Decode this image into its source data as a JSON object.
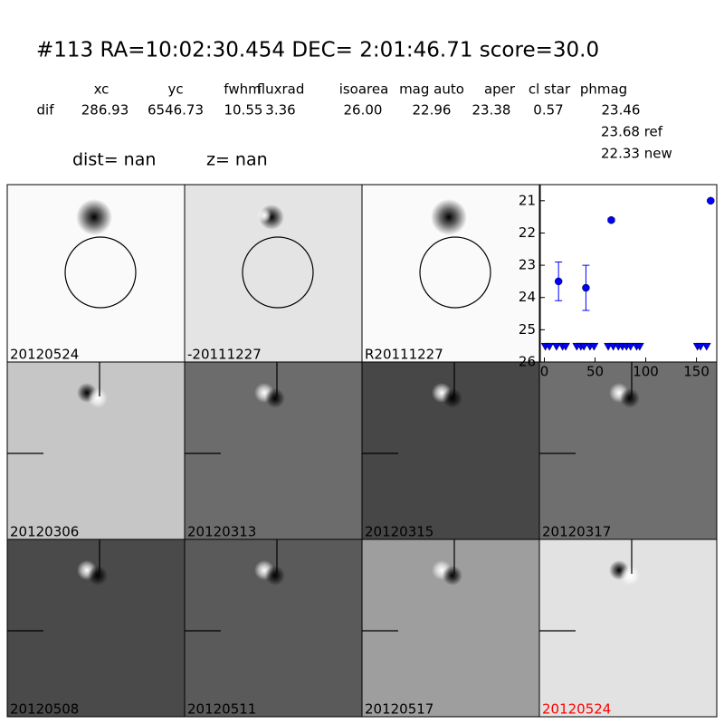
{
  "header": {
    "title": "#113   RA=10:02:30.454 DEC= 2:01:46.71      score=30.0",
    "dist": "dist=   nan",
    "z": "z=   nan"
  },
  "table": {
    "columns": [
      "xc",
      "yc",
      "fwhm",
      "fluxrad",
      "isoarea",
      "mag auto",
      "aper",
      "cl star",
      "phmag"
    ],
    "rows": [
      [
        "dif",
        "286.93",
        "6546.73",
        "10.55",
        "3.36",
        "26.00",
        "22.96",
        "23.38",
        "0.57",
        "23.46"
      ]
    ],
    "extra": [
      "23.68 ref",
      "22.33 new"
    ]
  },
  "panels": [
    "20120524",
    "-20111227",
    "R20111227",
    "20120306",
    "20120313",
    "20120315",
    "20120317",
    "20120508",
    "20120511",
    "20120517",
    "20120524"
  ],
  "chart_data": {
    "type": "scatter",
    "xlim": [
      -4,
      170
    ],
    "ylim": [
      26,
      20.5
    ],
    "xticks": [
      0,
      50,
      100,
      150
    ],
    "yticks": [
      21,
      22,
      23,
      24,
      25,
      26
    ],
    "series": [
      {
        "marker": "circle",
        "color": "#0000ff",
        "x": [
          14,
          41,
          66,
          164
        ],
        "values": [
          23.5,
          23.7,
          21.6,
          21.0
        ],
        "errors": [
          0.6,
          0.7,
          0.05,
          0.03
        ]
      },
      {
        "marker": "triangle-down",
        "color": "#0000ff",
        "x": [
          1,
          5,
          12,
          18,
          21,
          32,
          36,
          39,
          45,
          49,
          63,
          68,
          73,
          77,
          81,
          85,
          91,
          94,
          151,
          154,
          160
        ],
        "values": [
          25.5,
          25.5,
          25.5,
          25.5,
          25.5,
          25.5,
          25.5,
          25.5,
          25.5,
          25.5,
          25.5,
          25.5,
          25.5,
          25.5,
          25.5,
          25.5,
          25.5,
          25.5,
          25.5,
          25.5,
          25.5
        ]
      }
    ]
  }
}
